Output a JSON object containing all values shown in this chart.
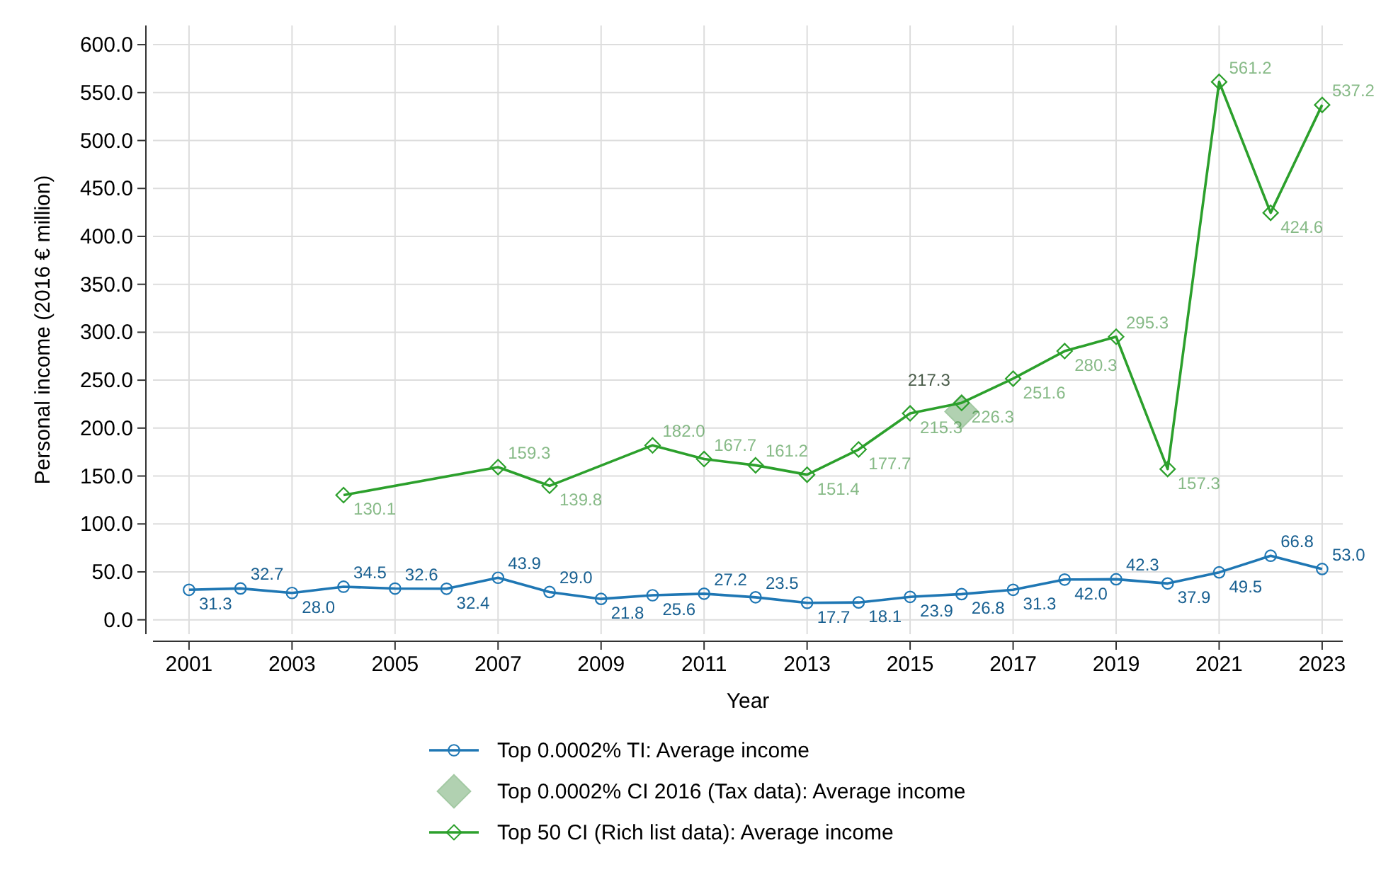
{
  "chart_data": {
    "type": "line",
    "xlabel": "Year",
    "ylabel": "Personal income (2016 € million)",
    "xlim": [
      2000.3,
      2023.4
    ],
    "xticks": [
      2001,
      2003,
      2005,
      2007,
      2009,
      2011,
      2013,
      2015,
      2017,
      2019,
      2021,
      2023
    ],
    "ylim": [
      -15,
      620
    ],
    "yticks": [
      {
        "value": 0,
        "label": "0.0"
      },
      {
        "value": 50,
        "label": "50.0"
      },
      {
        "value": 100,
        "label": "100.0"
      },
      {
        "value": 150,
        "label": "150.0"
      },
      {
        "value": 200,
        "label": "200.0"
      },
      {
        "value": 250,
        "label": "250.0"
      },
      {
        "value": 300,
        "label": "300.0"
      },
      {
        "value": 350,
        "label": "350.0"
      },
      {
        "value": 400,
        "label": "400.0"
      },
      {
        "value": 450,
        "label": "450.0"
      },
      {
        "value": 500,
        "label": "500.0"
      },
      {
        "value": 550,
        "label": "550.0"
      },
      {
        "value": 600,
        "label": "600.0"
      }
    ],
    "grid": true,
    "legend": "bottom",
    "series": [
      {
        "name": "Top 0.0002% TI: Average income",
        "marker": "circle",
        "color": "#1f77b4",
        "x": [
          2001,
          2002,
          2003,
          2004,
          2005,
          2006,
          2007,
          2008,
          2009,
          2010,
          2011,
          2012,
          2013,
          2014,
          2015,
          2016,
          2017,
          2018,
          2019,
          2020,
          2021,
          2022,
          2023
        ],
        "values": [
          31.3,
          32.7,
          28.0,
          34.5,
          32.6,
          32.4,
          43.9,
          29.0,
          21.8,
          25.6,
          27.2,
          23.5,
          17.7,
          18.1,
          23.9,
          26.8,
          31.3,
          42.0,
          42.3,
          37.9,
          49.5,
          66.8,
          53.0
        ],
        "value_labels": [
          "31.3",
          "32.7",
          "28.0",
          "34.5",
          "32.6",
          "32.4",
          "43.9",
          "29.0",
          "21.8",
          "25.6",
          "27.2",
          "23.5",
          "17.7",
          "18.1",
          "23.9",
          "26.8",
          "31.3",
          "42.0",
          "42.3",
          "37.9",
          "49.5",
          "66.8",
          "53.0"
        ]
      },
      {
        "name": "Top 0.0002% CI 2016 (Tax data): Average income",
        "type": "scatter",
        "marker": "diamond",
        "color": "#a3c9a3",
        "x": [
          2016
        ],
        "values": [
          217.3
        ],
        "value_labels": [
          "217.3"
        ]
      },
      {
        "name": "Top 50 CI (Rich list data): Average income",
        "marker": "diamond",
        "color": "#2ca02c",
        "x": [
          2004,
          2007,
          2008,
          2010,
          2011,
          2012,
          2013,
          2014,
          2015,
          2016,
          2017,
          2018,
          2019,
          2020,
          2021,
          2022,
          2023
        ],
        "values": [
          130.1,
          159.3,
          139.8,
          182.0,
          167.7,
          161.2,
          151.4,
          177.7,
          215.3,
          226.3,
          251.6,
          280.3,
          295.3,
          157.3,
          561.2,
          424.6,
          537.2
        ],
        "value_labels": [
          "130.1",
          "159.3",
          "139.8",
          "182.0",
          "167.7",
          "161.2",
          "151.4",
          "177.7",
          "215.3",
          "226.3",
          "251.6",
          "280.3",
          "295.3",
          "157.3",
          "561.2",
          "424.6",
          "537.2"
        ]
      }
    ]
  }
}
